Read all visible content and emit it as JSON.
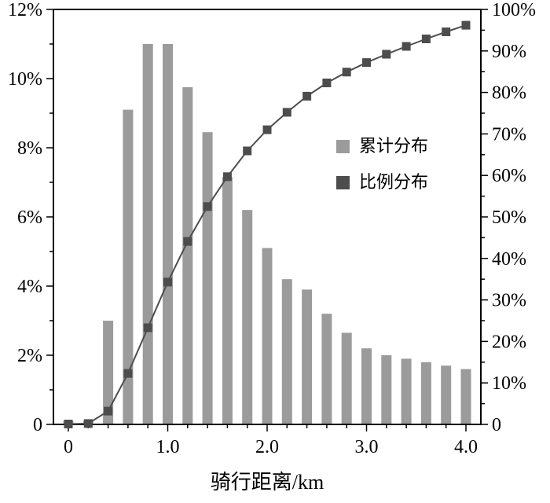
{
  "chart_data": {
    "type": "bar",
    "subtype": "histogram-with-cumulative-line",
    "title": "",
    "xlabel": "骑行距离/km",
    "ylabel_left": "",
    "ylabel_right": "",
    "grid": false,
    "x": [
      0,
      0.2,
      0.4,
      0.6,
      0.8,
      1.0,
      1.2,
      1.4,
      1.6,
      1.8,
      2.0,
      2.2,
      2.4,
      2.6,
      2.8,
      3.0,
      3.2,
      3.4,
      3.6,
      3.8,
      4.0
    ],
    "series": [
      {
        "name": "累计分布",
        "render": "bar",
        "axis": "left",
        "color": "#9b9b9b",
        "values": [
          0.1,
          0.1,
          3.0,
          9.1,
          11.0,
          11.0,
          9.75,
          8.45,
          7.15,
          6.2,
          5.1,
          4.2,
          3.9,
          3.2,
          2.65,
          2.2,
          2.0,
          1.9,
          1.8,
          1.7,
          1.6
        ]
      },
      {
        "name": "比例分布",
        "render": "line-square-markers",
        "axis": "right",
        "color": "#4d4d4d",
        "values": [
          0.1,
          0.2,
          3.2,
          12.3,
          23.3,
          34.3,
          44.1,
          52.5,
          59.7,
          65.9,
          71.0,
          75.2,
          79.1,
          82.3,
          84.9,
          87.2,
          89.2,
          91.1,
          92.9,
          94.6,
          96.2
        ]
      }
    ],
    "axes": {
      "x": {
        "range": [
          -0.15,
          4.15
        ],
        "tick_values": [
          0,
          1,
          2,
          3,
          4
        ],
        "tick_labels": [
          "0",
          "1.0",
          "2.0",
          "3.0",
          "4.0"
        ],
        "minor_step": 0.2
      },
      "y_left": {
        "range": [
          0,
          12
        ],
        "tick_values": [
          0,
          2,
          4,
          6,
          8,
          10,
          12
        ],
        "tick_labels": [
          "0",
          "2%",
          "4%",
          "6%",
          "8%",
          "10%",
          "12%"
        ],
        "minor_step": 1
      },
      "y_right": {
        "range": [
          0,
          100
        ],
        "tick_values": [
          0,
          10,
          20,
          30,
          40,
          50,
          60,
          70,
          80,
          90,
          100
        ],
        "tick_labels": [
          "0",
          "10%",
          "20%",
          "30%",
          "40%",
          "50%",
          "60%",
          "70%",
          "80%",
          "90%",
          "100%"
        ],
        "minor_step": 5
      }
    },
    "legend": {
      "position": "inside-right",
      "items": [
        {
          "label": "累计分布",
          "color": "#9b9b9b"
        },
        {
          "label": "比例分布",
          "color": "#4d4d4d"
        }
      ]
    },
    "colors": {
      "axis": "#000000",
      "text": "#000000",
      "background": "#ffffff"
    }
  }
}
